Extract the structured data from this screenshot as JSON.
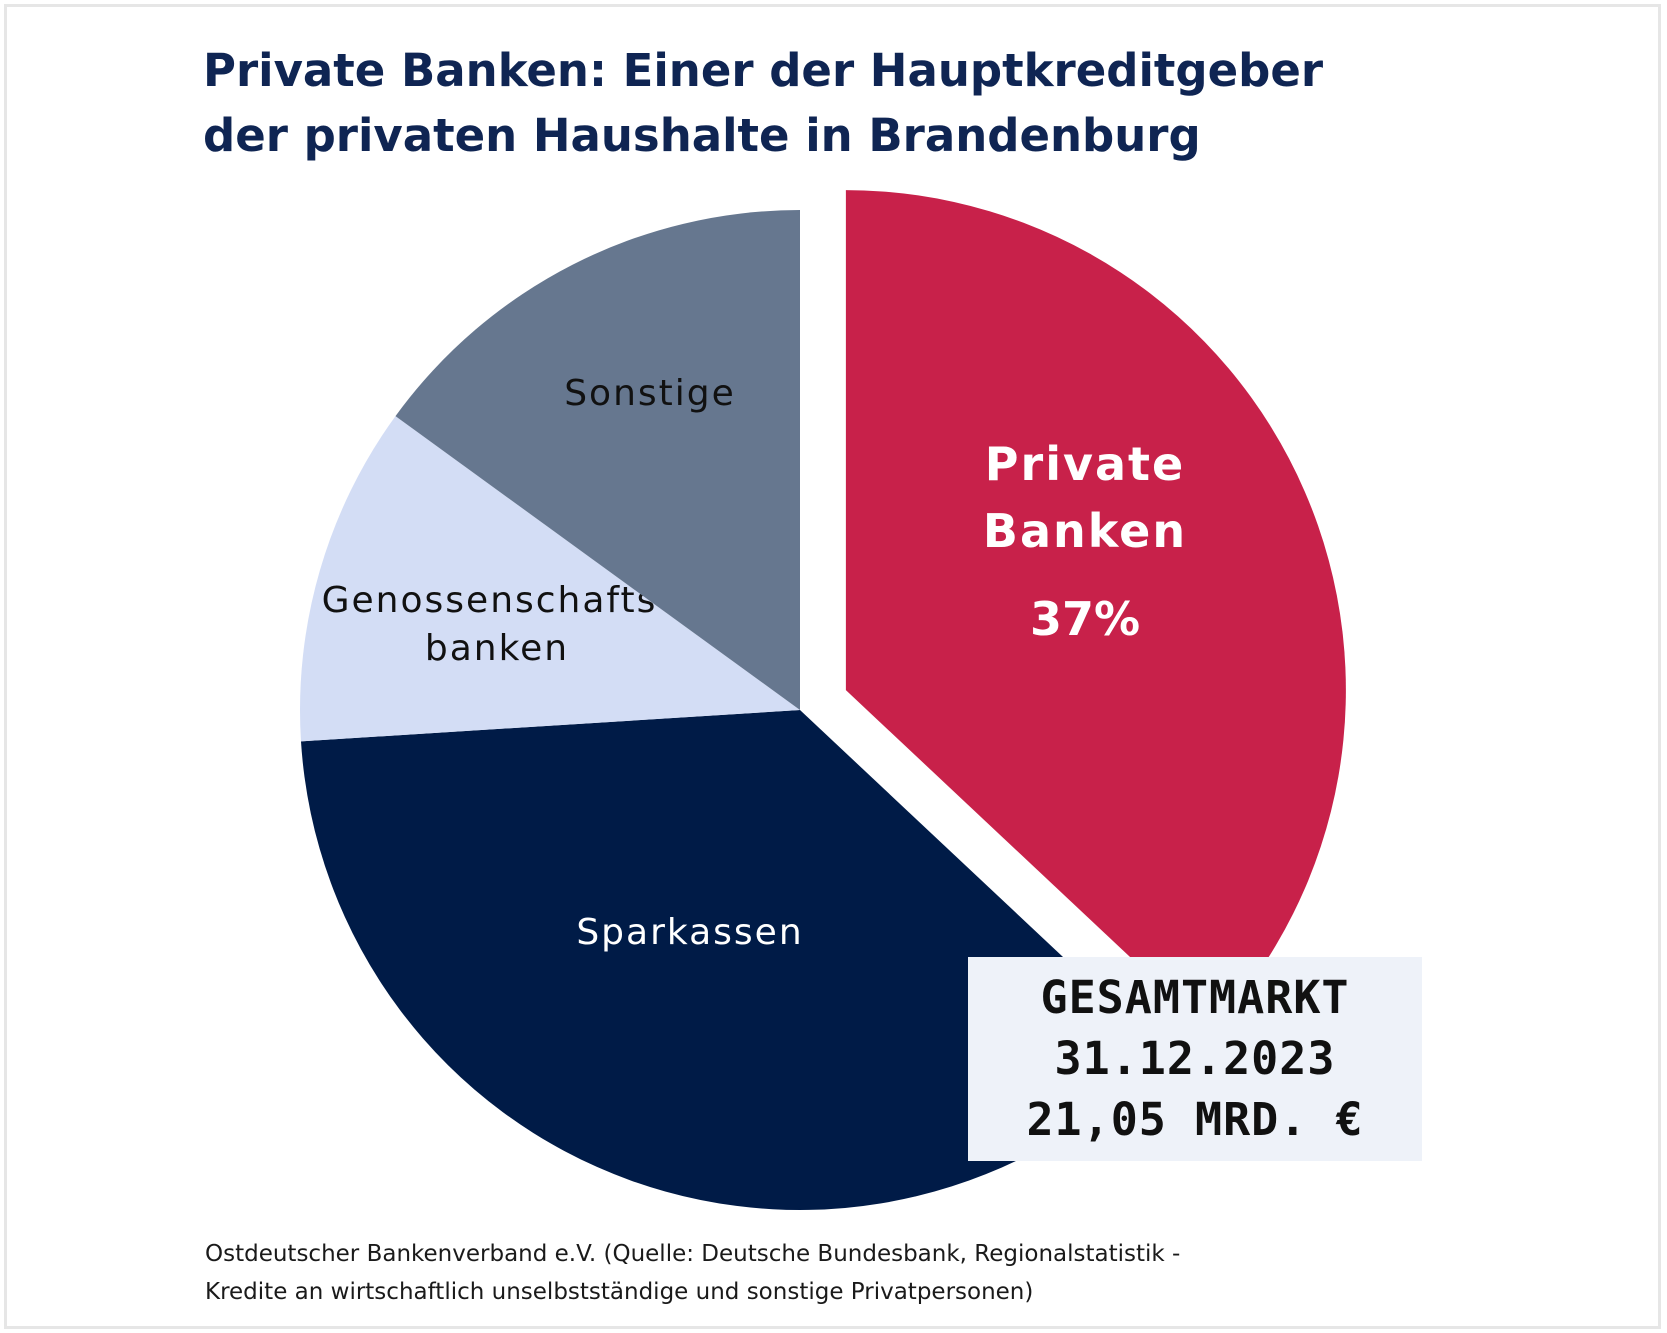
{
  "title": {
    "line1": "Private Banken: Einer der Hauptkreditgeber",
    "line2": "der privaten Haushalte in Brandenburg"
  },
  "chart_data": {
    "type": "pie",
    "title": "Private Banken: Einer der Hauptkreditgeber der privaten Haushalte in Brandenburg",
    "slices": [
      {
        "key": "private",
        "label_lines": [
          "Private",
          "Banken"
        ],
        "value_label": "37%",
        "value": 37,
        "color": "#c8214a",
        "exploded": true,
        "label_color": "#ffffff",
        "label_bold": true
      },
      {
        "key": "sparkassen",
        "label_lines": [
          "Sparkassen"
        ],
        "value": 37,
        "color": "#001b47",
        "exploded": false,
        "label_color": "#ffffff",
        "label_bold": false
      },
      {
        "key": "genossenschaftsbanken",
        "label_lines": [
          "Genossenschafts-",
          "banken"
        ],
        "value": 11,
        "color": "#d3ddf5",
        "exploded": false,
        "label_color": "#111111",
        "label_bold": false
      },
      {
        "key": "sonstige",
        "label_lines": [
          "Sonstige"
        ],
        "value": 15,
        "color": "#66778f",
        "exploded": false,
        "label_color": "#111111",
        "label_bold": false
      }
    ]
  },
  "total_box": {
    "line1": "GESAMTMARKT",
    "line2": "31.12.2023",
    "line3": "21,05 MRD. €"
  },
  "source": {
    "line1": "Ostdeutscher Bankenverband e.V. (Quelle: Deutsche Bundesbank, Regionalstatistik -",
    "line2": "Kredite an wirtschaftlich unselbstständige und sonstige Privatpersonen)"
  }
}
